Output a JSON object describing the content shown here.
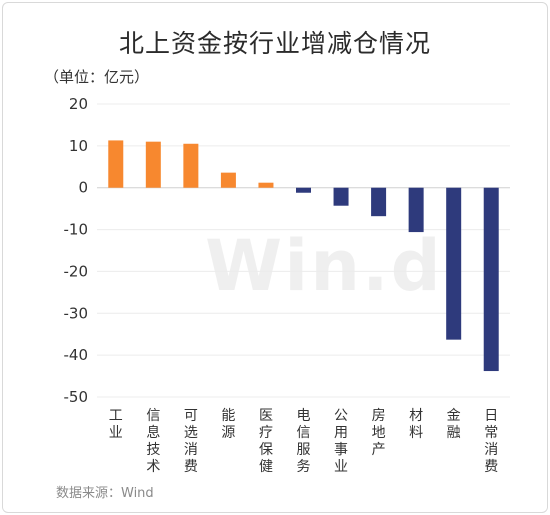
{
  "title": "北上资金按行业增减仓情况",
  "unit_label": "（单位：亿元）",
  "source": "数据来源：Wind",
  "watermark": "Win.d",
  "colors": {
    "positive": "#F7882F",
    "negative": "#2E3A7C",
    "grid": "#ececec",
    "zero": "#d0d0d0"
  },
  "chart_data": {
    "type": "bar",
    "title": "北上资金按行业增减仓情况",
    "ylabel": "（单位：亿元）",
    "ylim": [
      -50,
      20
    ],
    "yticks": [
      20,
      10,
      0,
      -10,
      -20,
      -30,
      -40,
      -50
    ],
    "grid": true,
    "categories": [
      "工业",
      "信息技术",
      "可选消费",
      "能源",
      "医疗保健",
      "电信服务",
      "公用事业",
      "房地产",
      "材料",
      "金融",
      "日常消费"
    ],
    "values": [
      11.3,
      11.0,
      10.5,
      3.6,
      1.2,
      -1.2,
      -4.3,
      -6.8,
      -10.6,
      -36.3,
      -43.8
    ]
  }
}
